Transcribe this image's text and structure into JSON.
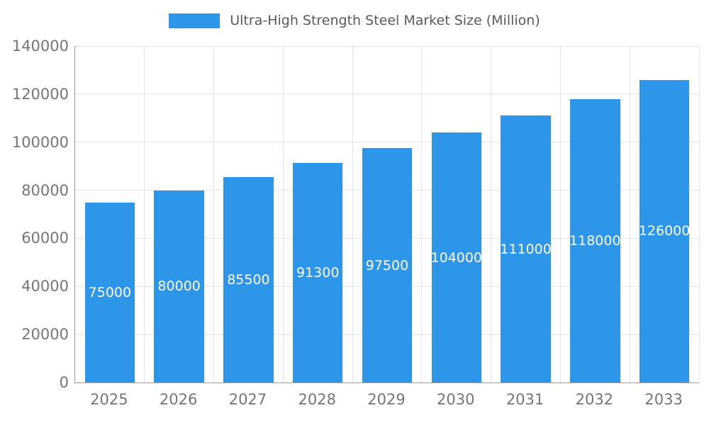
{
  "chart_data": {
    "type": "bar",
    "title": "",
    "legend": "Ultra-High Strength Steel Market Size (Million)",
    "categories": [
      "2025",
      "2026",
      "2027",
      "2028",
      "2029",
      "2030",
      "2031",
      "2032",
      "2033"
    ],
    "values": [
      75000,
      80000,
      85500,
      91300,
      97500,
      104000,
      111000,
      118000,
      126000
    ],
    "value_labels": [
      "75000",
      "80000",
      "85500",
      "91300",
      "97500",
      "104000",
      "111000",
      "118000",
      "126000"
    ],
    "ylabel": "",
    "xlabel": "",
    "ylim": [
      0,
      140000
    ],
    "ytick_step": 20000,
    "ytick_labels": [
      "0",
      "20000",
      "40000",
      "60000",
      "80000",
      "100000",
      "120000",
      "140000"
    ],
    "grid": "on",
    "legend_position": "top-center",
    "bar_color": "#2E96E9",
    "value_label_color": "#ffffff",
    "axis_label_color": "#757575",
    "gridline_color": "#e3e3e3",
    "axis_line_color": "#9e9e9e",
    "background_color": "#ffffff"
  }
}
